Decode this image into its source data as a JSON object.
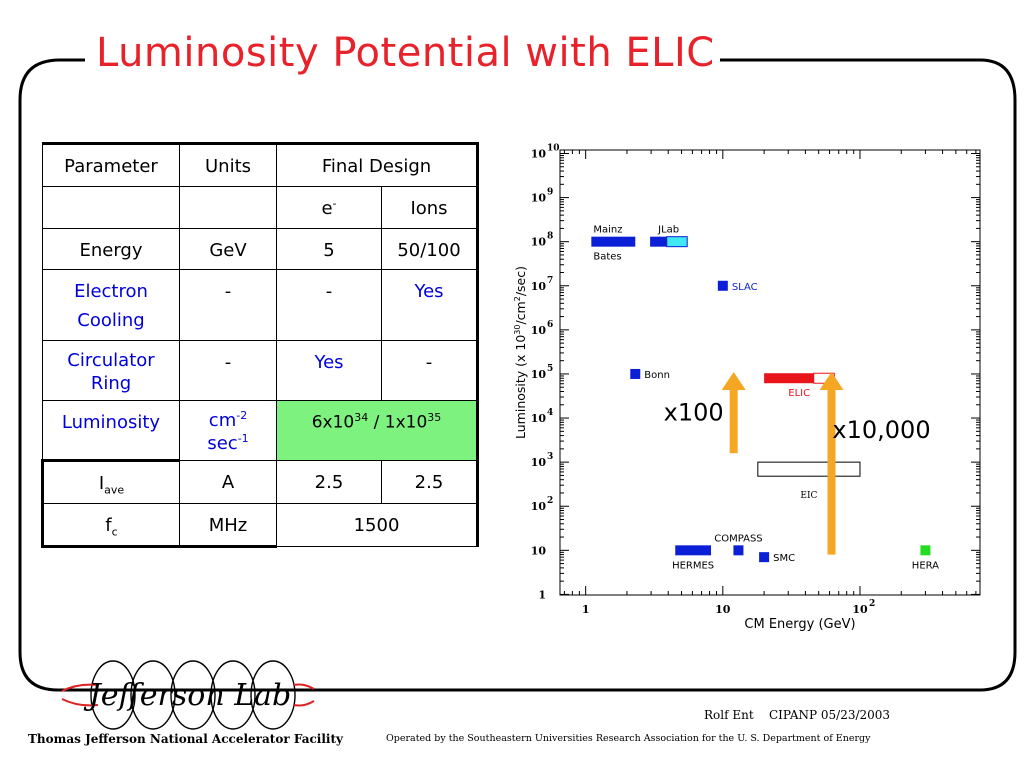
{
  "slide": {
    "title": "Luminosity Potential with ELIC",
    "author": "Rolf Ent",
    "conference": "CIPANP 05/23/2003",
    "facility": "Thomas Jefferson National Accelerator Facility",
    "operator_note": "Operated by the Southeastern Universities Research Association for the U. S. Department of Energy",
    "logo_text": "Jefferson Lab",
    "colors": {
      "title": "#e8222b",
      "frame": "#000000",
      "blue_text": "#0000dd",
      "highlight": "#7ef27e"
    }
  },
  "table": {
    "headers": {
      "parameter": "Parameter",
      "units": "Units",
      "final_design": "Final Design"
    },
    "subheaders": {
      "electron": "e",
      "electron_sup": "-",
      "ions": "Ions"
    },
    "rows": [
      {
        "param": "Energy",
        "unit": "GeV",
        "e": "5",
        "ion": "50/100"
      },
      {
        "param_line1": "Electron",
        "param_line2": "Cooling",
        "unit": "-",
        "e": "-",
        "ion": "Yes"
      },
      {
        "param_line1": "Circulator",
        "param_line2": "Ring",
        "unit": "-",
        "e": "Yes",
        "ion": "-"
      },
      {
        "param": "Luminosity",
        "unit_a": "cm",
        "unit_a_sup": "-2",
        "unit_b": "sec",
        "unit_b_sup": "-1",
        "value_a": "6x10",
        "value_a_sup": "34",
        "value_sep": " / ",
        "value_b": "1x10",
        "value_b_sup": "35"
      },
      {
        "param": "I",
        "param_sub": "ave",
        "unit": "A",
        "e": "2.5",
        "ion": "2.5"
      },
      {
        "param": "f",
        "param_sub": "c",
        "unit": "MHz",
        "value": "1500"
      }
    ]
  },
  "chart_data": {
    "type": "scatter",
    "xlabel": "CM Energy (GeV)",
    "ylabel_pre": "Luminosity (x 10",
    "ylabel_sup": "30",
    "ylabel_mid": "/cm",
    "ylabel_sup2": "2",
    "ylabel_post": "/sec)",
    "xscale": "log",
    "yscale": "log",
    "xlim": [
      0.65,
      750
    ],
    "ylim": [
      0.97,
      12000000000
    ],
    "x_ticks": [
      {
        "value": 1,
        "label": "1",
        "sup": ""
      },
      {
        "value": 10,
        "label": "10",
        "sup": ""
      },
      {
        "value": 100,
        "label": "10",
        "sup": "2"
      }
    ],
    "y_ticks": [
      {
        "value": 1,
        "label": "1",
        "sup": ""
      },
      {
        "value": 10,
        "label": "10",
        "sup": ""
      },
      {
        "value": 100,
        "label": "10",
        "sup": "2"
      },
      {
        "value": 1000,
        "label": "10",
        "sup": "3"
      },
      {
        "value": 10000,
        "label": "10",
        "sup": "4"
      },
      {
        "value": 100000,
        "label": "10",
        "sup": "5"
      },
      {
        "value": 1000000,
        "label": "10",
        "sup": "6"
      },
      {
        "value": 10000000,
        "label": "10",
        "sup": "7"
      },
      {
        "value": 100000000,
        "label": "10",
        "sup": "8"
      },
      {
        "value": 1000000000,
        "label": "10",
        "sup": "9"
      },
      {
        "value": 10000000000,
        "label": "10",
        "sup": "10"
      }
    ],
    "facilities": [
      {
        "name": "Mainz",
        "label_pos": "above",
        "shape": "bar",
        "x0": 1.1,
        "x1": 2.3,
        "y": 100000000,
        "color": "#0b1fd6"
      },
      {
        "name": "Bates",
        "label_pos": "below",
        "shape": "none",
        "x0": 1.1,
        "x1": 2.3,
        "y": 100000000,
        "color": "#0b1fd6"
      },
      {
        "name": "JLab",
        "label_pos": "above",
        "shape": "bar2",
        "x0": 2.95,
        "x1": 5.5,
        "xsplit": 3.9,
        "y": 100000000,
        "color": "#0b1fd6",
        "color2": "#3fe8f2"
      },
      {
        "name": "SLAC",
        "label_pos": "right",
        "shape": "square",
        "x": 10,
        "y": 10000000,
        "color": "#0b1fd6",
        "label_color": "#0b1fd6"
      },
      {
        "name": "Bonn",
        "label_pos": "right",
        "shape": "square",
        "x": 2.3,
        "y": 100000,
        "color": "#0b1fd6"
      },
      {
        "name": "ELIC",
        "label_pos": "below",
        "shape": "bar2",
        "x0": 20,
        "x1": 65,
        "xsplit": 46,
        "y": 80000,
        "color": "#e8141a",
        "color2": "#ffffff",
        "label_color": "#e8141a"
      },
      {
        "name": "EIC",
        "label_pos": "below",
        "shape": "box",
        "x0": 18,
        "x1": 100,
        "ylo": 480,
        "yhi": 1000,
        "color": "#ffffff"
      },
      {
        "name": "COMPASS",
        "label_pos": "above",
        "shape": "square",
        "x": 13,
        "y": 10,
        "color": "#0b1fd6"
      },
      {
        "name": "HERMES",
        "label_pos": "below",
        "shape": "bar",
        "x0": 4.5,
        "x1": 8.2,
        "y": 10,
        "color": "#0b1fd6"
      },
      {
        "name": "SMC",
        "label_pos": "right",
        "shape": "square",
        "x": 20,
        "y": 7,
        "color": "#0b1fd6"
      },
      {
        "name": "HERA",
        "label_pos": "below",
        "shape": "square",
        "x": 300,
        "y": 10,
        "color": "#22dd22"
      }
    ],
    "arrows": [
      {
        "label": "x100",
        "x": 12,
        "y_from": 1600,
        "y_to": 100000,
        "color": "#f5a623"
      },
      {
        "label": "x10,000",
        "x": 62,
        "y_from": 8,
        "y_to": 100000,
        "color": "#f5a623"
      }
    ]
  }
}
